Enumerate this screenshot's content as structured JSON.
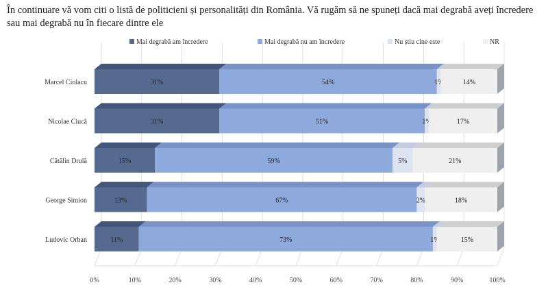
{
  "title": "În continuare vă vom citi o listă de politicieni și personalități din România. Vă rugăm să ne spuneți dacă mai degrabă aveți încredere sau mai degrabă nu în fiecare dintre ele",
  "colors": {
    "trust": "#56698f",
    "distrust": "#8ea9dc",
    "unknown": "#dde3f1",
    "nr": "#efefef",
    "side": "#9fa3aa",
    "grid": "#d9d9d9"
  },
  "chart_data": {
    "type": "bar",
    "orientation": "horizontal",
    "stacked": true,
    "percent_stacked": true,
    "categories": [
      "Marcel Ciolacu",
      "Nicolae Ciucă",
      "Cătălin Drulă",
      "George Simion",
      "Ludovic Orban"
    ],
    "series": [
      {
        "name": "Mai degrabă am încredere",
        "values": [
          31,
          31,
          15,
          13,
          11
        ]
      },
      {
        "name": "Mai degrabă nu am încredere",
        "values": [
          54,
          51,
          59,
          67,
          73
        ]
      },
      {
        "name": "Nu știu cine este",
        "values": [
          1,
          1,
          5,
          2,
          1
        ]
      },
      {
        "name": "NR",
        "values": [
          14,
          17,
          21,
          18,
          15
        ]
      }
    ],
    "value_labels": [
      [
        "31%",
        "54%",
        "1%",
        "14%"
      ],
      [
        "31%",
        "51%",
        "1%",
        "17%"
      ],
      [
        "15%",
        "59%",
        "5%",
        "21%"
      ],
      [
        "13%",
        "67%",
        "2%",
        "18%"
      ],
      [
        "11%",
        "73%",
        "1%",
        "15%"
      ]
    ],
    "xlim": [
      0,
      100
    ],
    "x_ticks": [
      "0%",
      "10%",
      "20%",
      "30%",
      "40%",
      "50%",
      "60%",
      "70%",
      "80%",
      "90%",
      "100%"
    ],
    "legend": "top",
    "grid": true
  }
}
